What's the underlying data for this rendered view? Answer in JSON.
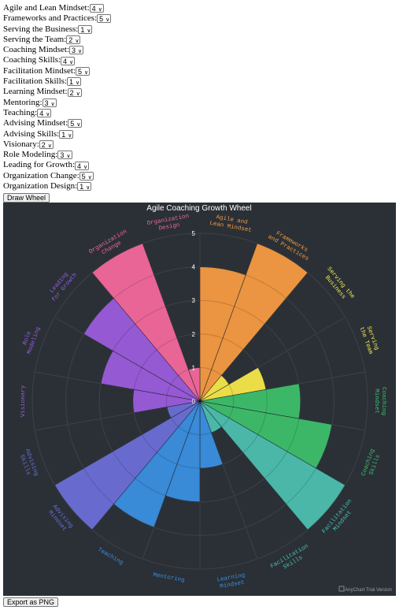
{
  "form": {
    "rows": [
      {
        "label": "Agile and Lean Mindset:",
        "value": "4"
      },
      {
        "label": "Frameworks and Practices:",
        "value": "5"
      },
      {
        "label": "Serving the Business:",
        "value": "1"
      },
      {
        "label": "Serving the Team:",
        "value": "2"
      },
      {
        "label": "Coaching Mindset:",
        "value": "3"
      },
      {
        "label": "Coaching Skills:",
        "value": "4"
      },
      {
        "label": "Facilitation Mindset:",
        "value": "5"
      },
      {
        "label": "Facilitation Skills:",
        "value": "1"
      },
      {
        "label": "Learning Mindset:",
        "value": "2"
      },
      {
        "label": "Mentoring:",
        "value": "3"
      },
      {
        "label": "Teaching:",
        "value": "4"
      },
      {
        "label": "Advising Mindset:",
        "value": "5"
      },
      {
        "label": "Advising Skills:",
        "value": "1"
      },
      {
        "label": "Visionary:",
        "value": "2"
      },
      {
        "label": "Role Modeling:",
        "value": "3"
      },
      {
        "label": "Leading for Growth:",
        "value": "4"
      },
      {
        "label": "Organization Change:",
        "value": "5"
      },
      {
        "label": "Organization Design:",
        "value": "1"
      }
    ],
    "draw_button": "Draw Wheel",
    "export_button": "Export as PNG"
  },
  "chart_data": {
    "type": "polar-bar",
    "title": "Agile Coaching Growth Wheel",
    "ylim": [
      0,
      5
    ],
    "radial_ticks": [
      "0",
      "1",
      "2",
      "3",
      "4",
      "5"
    ],
    "categories": [
      "Agile and Lean Mindset",
      "Frameworks and Practices",
      "Serving the Business",
      "Serving the Team",
      "Coaching Mindset",
      "Coaching Skills",
      "Facilitation Mindset",
      "Facilitation Skills",
      "Learning Mindset",
      "Mentoring",
      "Teaching",
      "Advising Mindset",
      "Advising Skills",
      "Visionary",
      "Role Modeling",
      "Leading for Growth",
      "Organization Change",
      "Organization Design"
    ],
    "values": [
      4,
      5,
      1,
      2,
      3,
      4,
      5,
      1,
      2,
      3,
      4,
      5,
      1,
      2,
      3,
      4,
      5,
      1
    ],
    "colors": [
      "#f59a42",
      "#f59a42",
      "#f4e74a",
      "#f4e74a",
      "#3dbf6c",
      "#3dbf6c",
      "#4dbfb0",
      "#4dbfb0",
      "#3a8fe0",
      "#3a8fe0",
      "#3a8fe0",
      "#6b6fd6",
      "#6b6fd6",
      "#9b5cdc",
      "#9b5cdc",
      "#9b5cdc",
      "#f2689c",
      "#f2689c"
    ],
    "label_colors": [
      "#f59a42",
      "#f59a42",
      "#f4e74a",
      "#f4e74a",
      "#3dbf6c",
      "#3dbf6c",
      "#4dbfb0",
      "#4dbfb0",
      "#3a8fe0",
      "#3a8fe0",
      "#3a8fe0",
      "#6b6fd6",
      "#6b6fd6",
      "#9b5cdc",
      "#9b5cdc",
      "#9b5cdc",
      "#f2689c",
      "#f2689c"
    ],
    "grid": true,
    "background": "#2a3036",
    "watermark": "AnyChart Trial Version"
  }
}
